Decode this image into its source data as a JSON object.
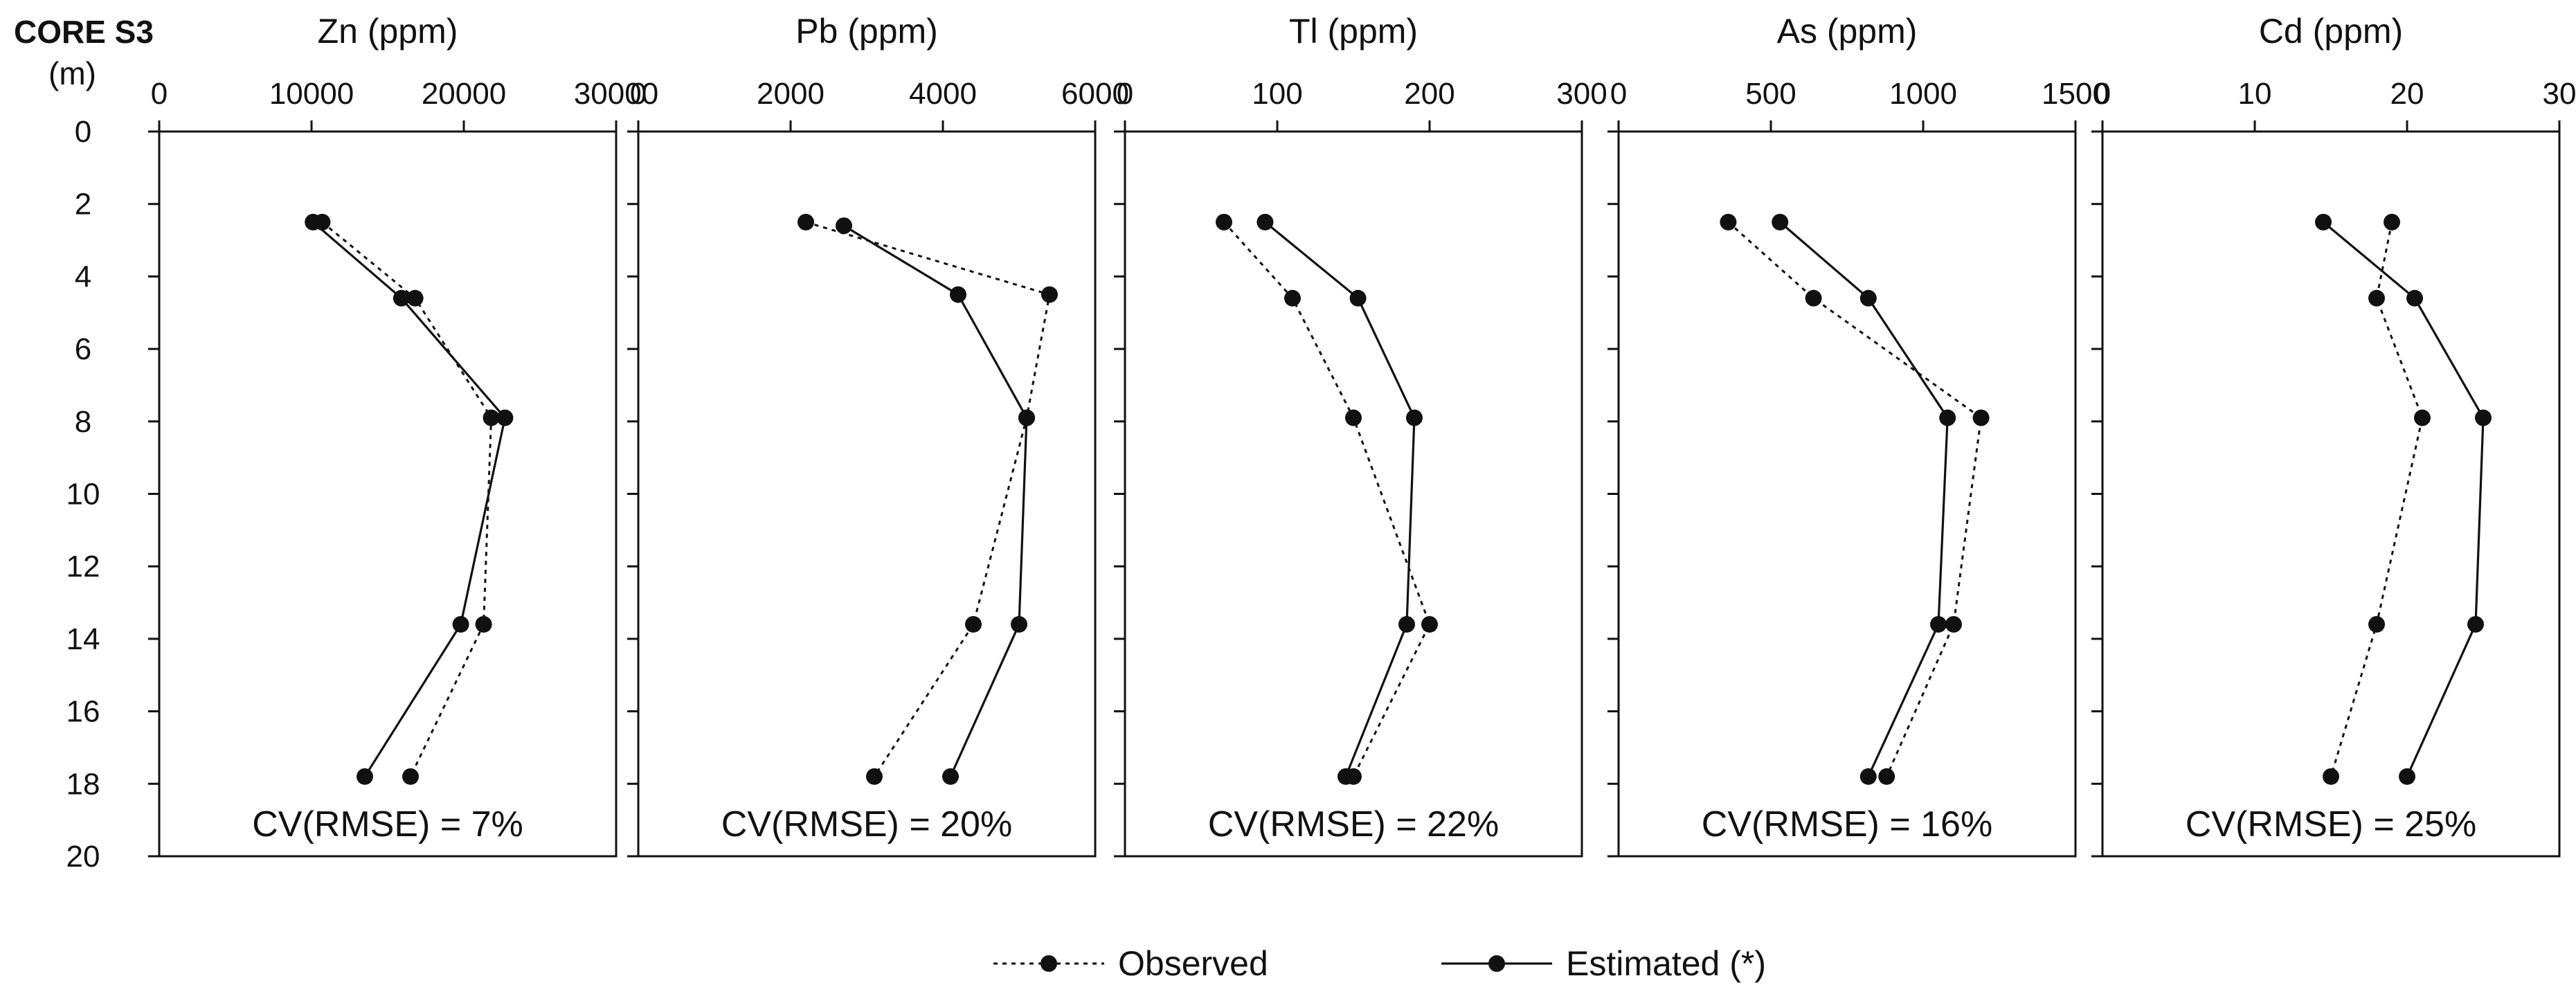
{
  "figure": {
    "core_label": "CORE S3",
    "depth_unit": "(m)"
  },
  "legend": {
    "observed_label": "Observed",
    "estimated_label": "Estimated (*)"
  },
  "chart_data": [
    {
      "type": "line",
      "title": "Zn (ppm)",
      "xlim": [
        0,
        30000
      ],
      "xticks": [
        0,
        10000,
        20000,
        30000
      ],
      "ylim": [
        0,
        20
      ],
      "yticks": [
        0,
        2,
        4,
        6,
        8,
        10,
        12,
        14,
        16,
        18,
        20
      ],
      "y_inverted": true,
      "annotation": "CV(RMSE) = 7%",
      "series": [
        {
          "name": "Observed",
          "style": "dotted",
          "x": [
            10700,
            16800,
            21800,
            21300,
            16500
          ],
          "y": [
            2.5,
            4.6,
            7.9,
            13.6,
            17.8
          ]
        },
        {
          "name": "Estimated (*)",
          "style": "solid",
          "x": [
            10100,
            15900,
            22700,
            19800,
            13500
          ],
          "y": [
            2.5,
            4.6,
            7.9,
            13.6,
            17.8
          ]
        }
      ]
    },
    {
      "type": "line",
      "title": "Pb (ppm)",
      "xlim": [
        0,
        6000
      ],
      "xticks": [
        0,
        2000,
        4000,
        6000
      ],
      "ylim": [
        0,
        20
      ],
      "yticks": [
        0,
        2,
        4,
        6,
        8,
        10,
        12,
        14,
        16,
        18,
        20
      ],
      "y_inverted": true,
      "annotation": "CV(RMSE) = 20%",
      "series": [
        {
          "name": "Observed",
          "style": "dotted",
          "x": [
            2200,
            5400,
            5100,
            4400,
            3100
          ],
          "y": [
            2.5,
            4.5,
            7.9,
            13.6,
            17.8
          ]
        },
        {
          "name": "Estimated (*)",
          "style": "solid",
          "x": [
            2700,
            4200,
            5100,
            5000,
            4100
          ],
          "y": [
            2.6,
            4.5,
            7.9,
            13.6,
            17.8
          ]
        }
      ]
    },
    {
      "type": "line",
      "title": "Tl (ppm)",
      "xlim": [
        0,
        300
      ],
      "xticks": [
        0,
        100,
        200,
        300
      ],
      "ylim": [
        0,
        20
      ],
      "yticks": [
        0,
        2,
        4,
        6,
        8,
        10,
        12,
        14,
        16,
        18,
        20
      ],
      "y_inverted": true,
      "annotation": "CV(RMSE) = 22%",
      "series": [
        {
          "name": "Observed",
          "style": "dotted",
          "x": [
            65,
            110,
            150,
            200,
            150
          ],
          "y": [
            2.5,
            4.6,
            7.9,
            13.6,
            17.8
          ]
        },
        {
          "name": "Estimated (*)",
          "style": "solid",
          "x": [
            92,
            153,
            190,
            185,
            145
          ],
          "y": [
            2.5,
            4.6,
            7.9,
            13.6,
            17.8
          ]
        }
      ]
    },
    {
      "type": "line",
      "title": "As (ppm)",
      "xlim": [
        0,
        1500
      ],
      "xticks": [
        0,
        500,
        1000,
        1500
      ],
      "ylim": [
        0,
        20
      ],
      "yticks": [
        0,
        2,
        4,
        6,
        8,
        10,
        12,
        14,
        16,
        18,
        20
      ],
      "y_inverted": true,
      "annotation": "CV(RMSE) = 16%",
      "series": [
        {
          "name": "Observed",
          "style": "dotted",
          "x": [
            360,
            640,
            1190,
            1100,
            880
          ],
          "y": [
            2.5,
            4.6,
            7.9,
            13.6,
            17.8
          ]
        },
        {
          "name": "Estimated (*)",
          "style": "solid",
          "x": [
            530,
            820,
            1080,
            1050,
            820
          ],
          "y": [
            2.5,
            4.6,
            7.9,
            13.6,
            17.8
          ]
        }
      ]
    },
    {
      "type": "line",
      "title": "Cd (ppm)",
      "xlim": [
        0,
        30
      ],
      "xticks": [
        0,
        10,
        20,
        30
      ],
      "ylim": [
        0,
        20
      ],
      "yticks": [
        0,
        2,
        4,
        6,
        8,
        10,
        12,
        14,
        16,
        18,
        20
      ],
      "y_inverted": true,
      "annotation": "CV(RMSE) = 25%",
      "series": [
        {
          "name": "Observed",
          "style": "dotted",
          "x": [
            19,
            18,
            21,
            18,
            15
          ],
          "y": [
            2.5,
            4.6,
            7.9,
            13.6,
            17.8
          ]
        },
        {
          "name": "Estimated (*)",
          "style": "solid",
          "x": [
            14.5,
            20.5,
            25,
            24.5,
            20
          ],
          "y": [
            2.5,
            4.6,
            7.9,
            13.6,
            17.8
          ]
        }
      ]
    }
  ]
}
